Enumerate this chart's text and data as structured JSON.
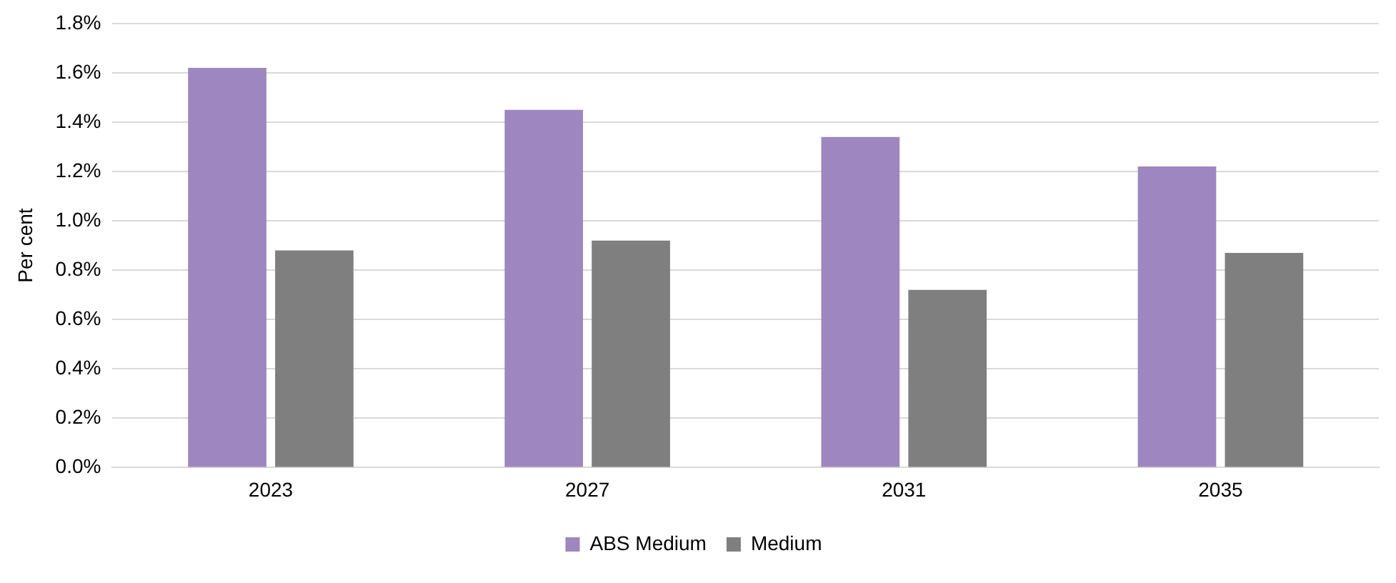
{
  "chart_data": {
    "type": "bar",
    "ylabel": "Per cent",
    "categories": [
      "2023",
      "2027",
      "2031",
      "2035"
    ],
    "series": [
      {
        "name": "ABS Medium",
        "color": "#9e86c0",
        "values": [
          1.62,
          1.45,
          1.34,
          1.22
        ]
      },
      {
        "name": "Medium",
        "color": "#7f7f7f",
        "values": [
          0.88,
          0.92,
          0.72,
          0.87
        ]
      }
    ],
    "ylim": [
      0,
      1.8
    ],
    "yticks": [
      {
        "value": 0,
        "label": "0.0%"
      },
      {
        "value": 0.2,
        "label": "0.2%"
      },
      {
        "value": 0.4,
        "label": "0.4%"
      },
      {
        "value": 0.6,
        "label": "0.6%"
      },
      {
        "value": 0.8,
        "label": "0.8%"
      },
      {
        "value": 1,
        "label": "1.0%"
      },
      {
        "value": 1.2,
        "label": "1.2%"
      },
      {
        "value": 1.4,
        "label": "1.4%"
      },
      {
        "value": 1.6,
        "label": "1.6%"
      },
      {
        "value": 1.8,
        "label": "1.8%"
      }
    ],
    "grid": "y",
    "legend": "bottom"
  }
}
